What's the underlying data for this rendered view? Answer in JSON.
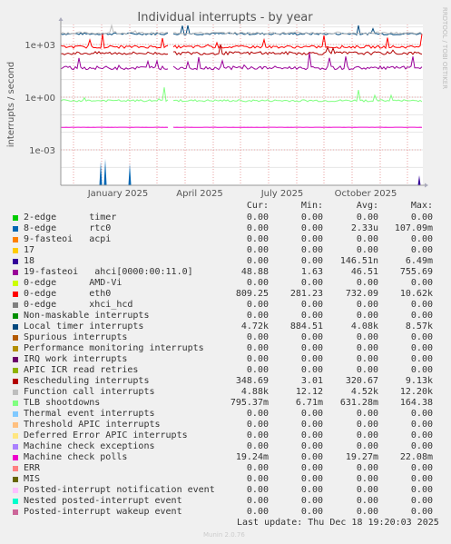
{
  "chart_data": {
    "type": "line",
    "title": "Individual interrupts - by year",
    "ylabel": "interrupts / second",
    "watermark": "RRDTOOL / TOBI OETIKER",
    "y_scale": "log",
    "y_tick_labels": [
      "1e+03",
      "1e+00",
      "1e-03"
    ],
    "x_tick_labels": [
      "January 2025",
      "April 2025",
      "July 2025",
      "October 2025"
    ],
    "grid": true,
    "columns": [
      "Cur:",
      "Min:",
      "Avg:",
      "Max:"
    ],
    "series": [
      {
        "name": "2-edge      timer",
        "color": "#00cc00",
        "cur": "0.00",
        "min": "0.00",
        "avg": "0.00",
        "max": "0.00"
      },
      {
        "name": "8-edge      rtc0",
        "color": "#0066b3",
        "cur": "0.00",
        "min": "0.00",
        "avg": "2.33u",
        "max": "107.09m"
      },
      {
        "name": "9-fasteoi   acpi",
        "color": "#ff8000",
        "cur": "0.00",
        "min": "0.00",
        "avg": "0.00",
        "max": "0.00"
      },
      {
        "name": "17",
        "color": "#ffcc00",
        "cur": "0.00",
        "min": "0.00",
        "avg": "0.00",
        "max": "0.00"
      },
      {
        "name": "18",
        "color": "#330099",
        "cur": "0.00",
        "min": "0.00",
        "avg": "146.51n",
        "max": "6.49m"
      },
      {
        "name": "19-fasteoi   ahci[0000:00:11.0]",
        "color": "#990099",
        "cur": "48.88",
        "min": "1.63",
        "avg": "46.51",
        "max": "755.69"
      },
      {
        "name": "0-edge      AMD-Vi",
        "color": "#ccff00",
        "cur": "0.00",
        "min": "0.00",
        "avg": "0.00",
        "max": "0.00"
      },
      {
        "name": "0-edge      eth0",
        "color": "#ff0000",
        "cur": "809.25",
        "min": "281.23",
        "avg": "732.09",
        "max": "10.62k"
      },
      {
        "name": "0-edge      xhci_hcd",
        "color": "#808080",
        "cur": "0.00",
        "min": "0.00",
        "avg": "0.00",
        "max": "0.00"
      },
      {
        "name": "Non-maskable interrupts",
        "color": "#008f00",
        "cur": "0.00",
        "min": "0.00",
        "avg": "0.00",
        "max": "0.00"
      },
      {
        "name": "Local timer interrupts",
        "color": "#00487d",
        "cur": "4.72k",
        "min": "884.51",
        "avg": "4.08k",
        "max": "8.57k"
      },
      {
        "name": "Spurious interrupts",
        "color": "#b35a00",
        "cur": "0.00",
        "min": "0.00",
        "avg": "0.00",
        "max": "0.00"
      },
      {
        "name": "Performance monitoring interrupts",
        "color": "#b38f00",
        "cur": "0.00",
        "min": "0.00",
        "avg": "0.00",
        "max": "0.00"
      },
      {
        "name": "IRQ work interrupts",
        "color": "#6b006b",
        "cur": "0.00",
        "min": "0.00",
        "avg": "0.00",
        "max": "0.00"
      },
      {
        "name": "APIC ICR read retries",
        "color": "#8fb300",
        "cur": "0.00",
        "min": "0.00",
        "avg": "0.00",
        "max": "0.00"
      },
      {
        "name": "Rescheduling interrupts",
        "color": "#b30000",
        "cur": "348.69",
        "min": "3.01",
        "avg": "320.67",
        "max": "9.13k"
      },
      {
        "name": "Function call interrupts",
        "color": "#bebebe",
        "cur": "4.88k",
        "min": "12.12",
        "avg": "4.52k",
        "max": "12.20k"
      },
      {
        "name": "TLB shootdowns",
        "color": "#80ff80",
        "cur": "795.37m",
        "min": "6.71m",
        "avg": "631.28m",
        "max": "164.38"
      },
      {
        "name": "Thermal event interrupts",
        "color": "#80c9ff",
        "cur": "0.00",
        "min": "0.00",
        "avg": "0.00",
        "max": "0.00"
      },
      {
        "name": "Threshold APIC interrupts",
        "color": "#ffc080",
        "cur": "0.00",
        "min": "0.00",
        "avg": "0.00",
        "max": "0.00"
      },
      {
        "name": "Deferred Error APIC interrupts",
        "color": "#ffe680",
        "cur": "0.00",
        "min": "0.00",
        "avg": "0.00",
        "max": "0.00"
      },
      {
        "name": "Machine check exceptions",
        "color": "#aa80ff",
        "cur": "0.00",
        "min": "0.00",
        "avg": "0.00",
        "max": "0.00"
      },
      {
        "name": "Machine check polls",
        "color": "#ee00cc",
        "cur": "19.24m",
        "min": "0.00",
        "avg": "19.27m",
        "max": "22.08m"
      },
      {
        "name": "ERR",
        "color": "#ff8080",
        "cur": "0.00",
        "min": "0.00",
        "avg": "0.00",
        "max": "0.00"
      },
      {
        "name": "MIS",
        "color": "#666600",
        "cur": "0.00",
        "min": "0.00",
        "avg": "0.00",
        "max": "0.00"
      },
      {
        "name": "Posted-interrupt notification event",
        "color": "#ffbfff",
        "cur": "0.00",
        "min": "0.00",
        "avg": "0.00",
        "max": "0.00"
      },
      {
        "name": "Nested posted-interrupt event",
        "color": "#00ffcc",
        "cur": "0.00",
        "min": "0.00",
        "avg": "0.00",
        "max": "0.00"
      },
      {
        "name": "Posted-interrupt wakeup event",
        "color": "#cc6699",
        "cur": "0.00",
        "min": "0.00",
        "avg": "0.00",
        "max": "0.00"
      }
    ],
    "last_update": "Last update: Thu Dec 18 19:20:03 2025",
    "footer": "Munin 2.0.76"
  }
}
